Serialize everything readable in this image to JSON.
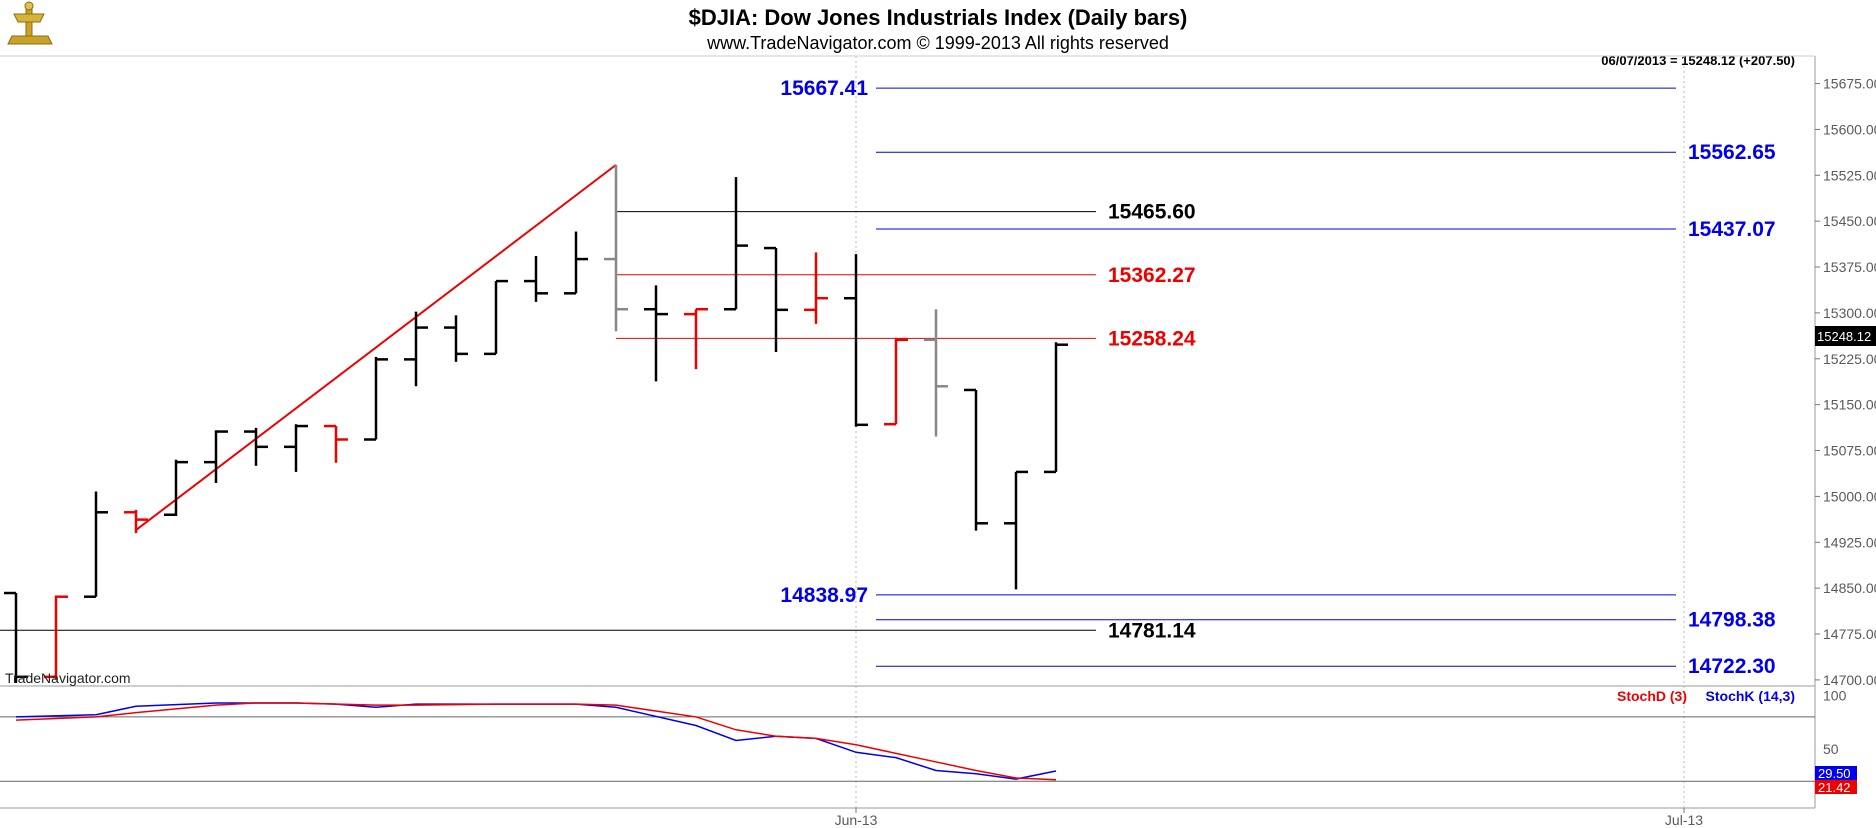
{
  "header": {
    "title": "$DJIA:  Dow Jones Industrials Index  (Daily bars)",
    "subtitle": "www.TradeNavigator.com © 1999-2013 All rights reserved",
    "last_info": "06/07/2013 = 15248.12 (+207.50)",
    "last_box": "15248.12"
  },
  "watermark": "TradeNavigator.com",
  "logo": "gold-trident-logo",
  "colors": {
    "up_bar": "#000000",
    "down_bar": "#ee0000",
    "neutral_bar": "#888888",
    "blue_level": "#0000ee",
    "red_level": "#ee0000",
    "black_level": "#000000",
    "trendline": "#ee0000",
    "stoch_d": "#ee0000",
    "stoch_k": "#0000ee"
  },
  "chart_data": [
    {
      "type": "ohlc",
      "grid": "vertical month lines only",
      "ylim": [
        14690,
        15720
      ],
      "yticks": [
        "15675.00",
        "15600.00",
        "15525.00",
        "15450.00",
        "15375.00",
        "15300.00",
        "15225.00",
        "15150.00",
        "15075.00",
        "15000.00",
        "14925.00",
        "14850.00",
        "14775.00",
        "14700.00"
      ],
      "xticks": [
        {
          "label": "Jun-13",
          "index": 21
        },
        {
          "label": "Jul-13",
          "index": 41.7
        }
      ],
      "bars": [
        {
          "o": 14842,
          "h": 14842,
          "l": 14695,
          "c": 14705,
          "color": "up"
        },
        {
          "o": 14705,
          "h": 14838,
          "l": 14700,
          "c": 14836,
          "color": "down"
        },
        {
          "o": 14836,
          "h": 15008,
          "l": 14836,
          "c": 14974,
          "color": "up"
        },
        {
          "o": 14974,
          "h": 14978,
          "l": 14940,
          "c": 14962,
          "color": "down"
        },
        {
          "o": 14970,
          "h": 15060,
          "l": 14968,
          "c": 15056,
          "color": "up"
        },
        {
          "o": 15056,
          "h": 15108,
          "l": 15022,
          "c": 15106,
          "color": "up"
        },
        {
          "o": 15106,
          "h": 15112,
          "l": 15050,
          "c": 15081,
          "color": "up"
        },
        {
          "o": 15081,
          "h": 15118,
          "l": 15040,
          "c": 15115,
          "color": "up"
        },
        {
          "o": 15115,
          "h": 15115,
          "l": 15055,
          "c": 15093,
          "color": "down"
        },
        {
          "o": 15093,
          "h": 15228,
          "l": 15093,
          "c": 15224,
          "color": "up"
        },
        {
          "o": 15224,
          "h": 15302,
          "l": 15180,
          "c": 15276,
          "color": "up"
        },
        {
          "o": 15276,
          "h": 15296,
          "l": 15220,
          "c": 15233,
          "color": "up"
        },
        {
          "o": 15233,
          "h": 15352,
          "l": 15233,
          "c": 15352,
          "color": "up"
        },
        {
          "o": 15352,
          "h": 15393,
          "l": 15318,
          "c": 15332,
          "color": "up"
        },
        {
          "o": 15332,
          "h": 15433,
          "l": 15332,
          "c": 15388,
          "color": "up"
        },
        {
          "o": 15388,
          "h": 15542,
          "l": 15270,
          "c": 15306,
          "color": "neutral"
        },
        {
          "o": 15306,
          "h": 15345,
          "l": 15188,
          "c": 15298,
          "color": "up"
        },
        {
          "o": 15298,
          "h": 15306,
          "l": 15208,
          "c": 15306,
          "color": "down"
        },
        {
          "o": 15306,
          "h": 15522,
          "l": 15306,
          "c": 15410,
          "color": "up"
        },
        {
          "o": 15406,
          "h": 15406,
          "l": 15236,
          "c": 15305,
          "color": "up"
        },
        {
          "o": 15305,
          "h": 15399,
          "l": 15282,
          "c": 15324,
          "color": "down"
        },
        {
          "o": 15324,
          "h": 15396,
          "l": 15114,
          "c": 15117,
          "color": "up"
        },
        {
          "o": 15118,
          "h": 15258,
          "l": 15118,
          "c": 15256,
          "color": "down"
        },
        {
          "o": 15256,
          "h": 15306,
          "l": 15098,
          "c": 15180,
          "color": "neutral"
        },
        {
          "o": 15174,
          "h": 15174,
          "l": 14944,
          "c": 14956,
          "color": "up"
        },
        {
          "o": 14956,
          "h": 15040,
          "l": 14848,
          "c": 15040,
          "color": "up"
        },
        {
          "o": 15040,
          "h": 15252,
          "l": 15040,
          "c": 15248,
          "color": "up"
        }
      ],
      "trendline": {
        "from": {
          "index": 3,
          "value": 14945
        },
        "to": {
          "index": 15,
          "value": 15542
        }
      },
      "levels": [
        {
          "value": 15667.41,
          "label": "15667.41",
          "color": "blue",
          "label_side": "left",
          "from_index": 21.5,
          "to_index": 41.5
        },
        {
          "value": 15562.65,
          "label": "15562.65",
          "color": "blue",
          "label_side": "right",
          "from_index": 21.5,
          "to_index": 41.5
        },
        {
          "value": 15465.6,
          "label": "15465.60",
          "color": "black",
          "label_side": "right",
          "from_index": 15,
          "to_index": 27
        },
        {
          "value": 15437.07,
          "label": "15437.07",
          "color": "blue",
          "label_side": "right",
          "from_index": 21.5,
          "to_index": 41.5
        },
        {
          "value": 15362.27,
          "label": "15362.27",
          "color": "red",
          "label_side": "right",
          "from_index": 15,
          "to_index": 27
        },
        {
          "value": 15258.24,
          "label": "15258.24",
          "color": "red",
          "label_side": "right",
          "from_index": 15,
          "to_index": 27
        },
        {
          "value": 14838.97,
          "label": "14838.97",
          "color": "blue",
          "label_side": "left",
          "from_index": 21.5,
          "to_index": 41.5
        },
        {
          "value": 14798.38,
          "label": "14798.38",
          "color": "blue",
          "label_side": "right",
          "from_index": 21.5,
          "to_index": 41.5
        },
        {
          "value": 14781.14,
          "label": "14781.14",
          "color": "black",
          "label_side": "right",
          "from_index": -0.5,
          "to_index": 27
        },
        {
          "value": 14722.3,
          "label": "14722.30",
          "color": "blue",
          "label_side": "right",
          "from_index": 21.5,
          "to_index": 41.5
        }
      ]
    },
    {
      "type": "line",
      "legend": [
        "StochD (3)",
        "StochK (14,3)"
      ],
      "legend_placement": "top-right",
      "ylim": [
        -5,
        107
      ],
      "yticks": [
        "100",
        "50"
      ],
      "reference_lines": [
        80,
        20
      ],
      "last_values": {
        "k": "29.50",
        "d": "21.42"
      },
      "series": [
        {
          "name": "StochK (14,3)",
          "color": "blue",
          "values": [
            [
              0,
              80
            ],
            [
              2,
              82
            ],
            [
              3,
              90
            ],
            [
              5,
              93
            ],
            [
              7,
              93
            ],
            [
              8,
              92
            ],
            [
              9,
              89
            ],
            [
              10,
              92
            ],
            [
              12,
              92
            ],
            [
              14,
              92
            ],
            [
              15,
              89
            ],
            [
              17,
              72
            ],
            [
              18,
              58
            ],
            [
              19,
              62
            ],
            [
              20,
              60
            ],
            [
              21,
              47
            ],
            [
              22,
              42
            ],
            [
              23,
              30
            ],
            [
              24,
              27
            ],
            [
              25,
              22
            ],
            [
              26,
              29.5
            ]
          ]
        },
        {
          "name": "StochD (3)",
          "color": "red",
          "values": [
            [
              0,
              77
            ],
            [
              2,
              80
            ],
            [
              3,
              84
            ],
            [
              5,
              91
            ],
            [
              6,
              93
            ],
            [
              7,
              93
            ],
            [
              9,
              91
            ],
            [
              10,
              91
            ],
            [
              12,
              92
            ],
            [
              14,
              92
            ],
            [
              15,
              91
            ],
            [
              17,
              80
            ],
            [
              18,
              68
            ],
            [
              19,
              62
            ],
            [
              20,
              60
            ],
            [
              21,
              54
            ],
            [
              22,
              46
            ],
            [
              23,
              38
            ],
            [
              24,
              30
            ],
            [
              25,
              23
            ],
            [
              26,
              21.42
            ]
          ]
        }
      ]
    }
  ]
}
